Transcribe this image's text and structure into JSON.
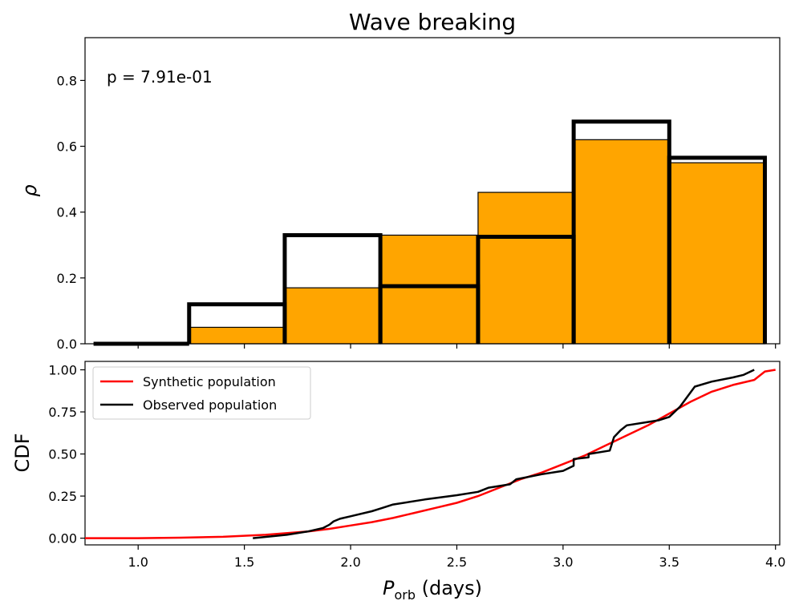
{
  "title": "Wave breaking",
  "colors": {
    "synthetic": "#ff0000",
    "observed": "#000000",
    "fill": "#ffa500"
  },
  "chart_data": [
    {
      "type": "bar",
      "panel": "top",
      "ylabel": "ρ",
      "xlim": [
        0.75,
        4.02
      ],
      "ylim": [
        0.0,
        0.93
      ],
      "yticks": [
        "0.0",
        "0.2",
        "0.4",
        "0.6",
        "0.8"
      ],
      "annotation": "p = 7.91e-01",
      "bin_edges": [
        0.79,
        1.24,
        1.69,
        2.14,
        2.6,
        3.05,
        3.5,
        3.95
      ],
      "series": [
        {
          "name": "Synthetic population (filled)",
          "values": [
            0.0,
            0.05,
            0.17,
            0.33,
            0.46,
            0.62,
            0.55
          ]
        },
        {
          "name": "Observed population (outline)",
          "values": [
            0.0,
            0.12,
            0.33,
            0.175,
            0.325,
            0.675,
            0.565
          ]
        }
      ]
    },
    {
      "type": "line",
      "panel": "bottom",
      "title": "",
      "xlabel_main": "P",
      "xlabel_sub": "orb",
      "xlabel_rest": " (days)",
      "ylabel": "CDF",
      "xlim": [
        0.75,
        4.02
      ],
      "ylim": [
        -0.04,
        1.05
      ],
      "xticks": [
        "1.0",
        "1.5",
        "2.0",
        "2.5",
        "3.0",
        "3.5",
        "4.0"
      ],
      "yticks": [
        "0.00",
        "0.25",
        "0.50",
        "0.75",
        "1.00"
      ],
      "legend": {
        "position": "top-left",
        "synthetic_label": "Synthetic population",
        "observed_label": "Observed population"
      },
      "series": [
        {
          "name": "Synthetic population",
          "x": [
            0.75,
            1.0,
            1.2,
            1.4,
            1.6,
            1.8,
            1.9,
            2.0,
            2.1,
            2.2,
            2.3,
            2.4,
            2.5,
            2.6,
            2.7,
            2.8,
            2.9,
            3.0,
            3.1,
            3.2,
            3.3,
            3.4,
            3.5,
            3.6,
            3.7,
            3.8,
            3.9,
            3.95,
            4.0
          ],
          "y": [
            0.0,
            0.0,
            0.003,
            0.008,
            0.02,
            0.04,
            0.055,
            0.075,
            0.095,
            0.12,
            0.15,
            0.18,
            0.21,
            0.25,
            0.3,
            0.35,
            0.39,
            0.44,
            0.49,
            0.55,
            0.61,
            0.67,
            0.74,
            0.81,
            0.87,
            0.91,
            0.94,
            0.99,
            1.0
          ]
        },
        {
          "name": "Observed population",
          "x": [
            1.54,
            1.7,
            1.8,
            1.87,
            1.9,
            1.92,
            1.95,
            2.0,
            2.1,
            2.15,
            2.2,
            2.35,
            2.5,
            2.6,
            2.65,
            2.75,
            2.78,
            2.9,
            3.0,
            3.05,
            3.05,
            3.12,
            3.12,
            3.22,
            3.24,
            3.27,
            3.3,
            3.4,
            3.45,
            3.5,
            3.55,
            3.62,
            3.7,
            3.8,
            3.85,
            3.9
          ],
          "y": [
            0.0,
            0.02,
            0.04,
            0.06,
            0.08,
            0.1,
            0.115,
            0.13,
            0.16,
            0.18,
            0.2,
            0.23,
            0.255,
            0.275,
            0.3,
            0.32,
            0.35,
            0.38,
            0.4,
            0.43,
            0.47,
            0.48,
            0.5,
            0.52,
            0.6,
            0.64,
            0.67,
            0.69,
            0.7,
            0.72,
            0.78,
            0.9,
            0.93,
            0.955,
            0.97,
            1.0
          ]
        }
      ]
    }
  ]
}
